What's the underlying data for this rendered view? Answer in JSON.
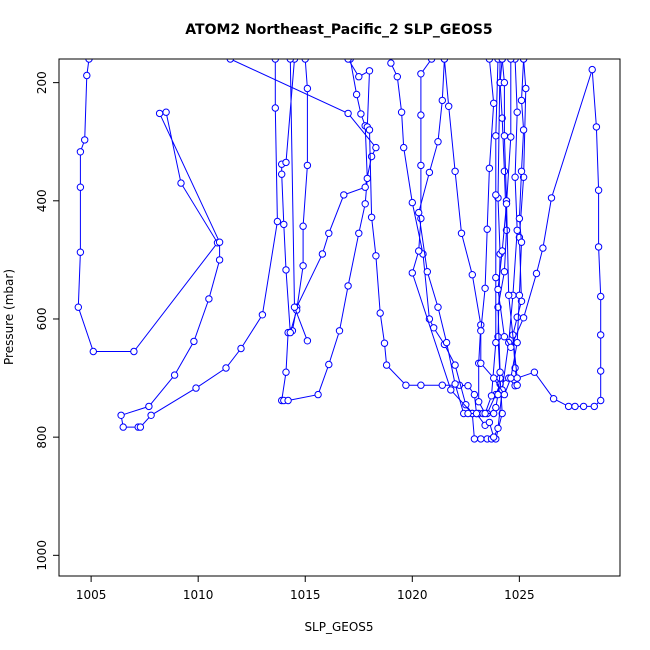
{
  "chart_data": {
    "type": "line",
    "title": "ATOM2 Northeast_Pacific_2 SLP_GEOS5",
    "xlabel": "SLP_GEOS5",
    "ylabel": "Pressure (mbar)",
    "xlim": [
      1003.5,
      1029.7
    ],
    "ylim": [
      1035,
      160
    ],
    "y_inverted": true,
    "x_ticks": [
      1005,
      1010,
      1015,
      1020,
      1025
    ],
    "y_ticks": [
      200,
      400,
      600,
      800,
      1000
    ],
    "grid": false,
    "legend": "none",
    "line_color": "#0000ff",
    "marker": "open-circle",
    "series": [
      {
        "points": [
          [
            1004.9,
            160
          ],
          [
            1004.8,
            188
          ],
          [
            1004.7,
            297
          ],
          [
            1004.5,
            317
          ],
          [
            1004.5,
            377
          ],
          [
            1004.5,
            487
          ],
          [
            1004.4,
            580
          ],
          [
            1005.1,
            655
          ],
          [
            1007.0,
            655
          ],
          [
            1010.9,
            471
          ],
          [
            1009.2,
            370
          ],
          [
            1008.5,
            250
          ],
          [
            1008.2,
            252
          ],
          [
            1011.0,
            470
          ],
          [
            1011.0,
            500
          ],
          [
            1010.5,
            566
          ],
          [
            1009.8,
            638
          ],
          [
            1008.9,
            695
          ],
          [
            1007.7,
            748
          ],
          [
            1006.4,
            763
          ],
          [
            1006.5,
            783
          ],
          [
            1007.2,
            783
          ],
          [
            1007.3,
            783
          ],
          [
            1007.8,
            763
          ],
          [
            1009.9,
            717
          ],
          [
            1011.3,
            683
          ],
          [
            1012.0,
            650
          ],
          [
            1013.0,
            593
          ],
          [
            1013.7,
            435
          ],
          [
            1013.6,
            243
          ],
          [
            1013.6,
            160
          ]
        ]
      },
      {
        "points": [
          [
            1011.5,
            160
          ],
          [
            1017.0,
            252
          ],
          [
            1018.3,
            310
          ],
          [
            1018.1,
            325
          ],
          [
            1017.8,
            377
          ],
          [
            1016.8,
            390
          ],
          [
            1016.1,
            455
          ],
          [
            1015.8,
            490
          ],
          [
            1014.6,
            580
          ],
          [
            1014.4,
            620
          ],
          [
            1014.2,
            623
          ],
          [
            1014.1,
            690
          ],
          [
            1013.9,
            738
          ],
          [
            1014.0,
            738
          ],
          [
            1014.2,
            738
          ],
          [
            1015.6,
            728
          ],
          [
            1016.1,
            677
          ],
          [
            1016.6,
            620
          ],
          [
            1017.0,
            544
          ],
          [
            1017.5,
            455
          ],
          [
            1017.8,
            405
          ],
          [
            1017.9,
            362
          ],
          [
            1017.8,
            273
          ],
          [
            1017.6,
            253
          ],
          [
            1017.4,
            220
          ],
          [
            1017.1,
            160
          ]
        ]
      },
      {
        "points": [
          [
            1015.0,
            160
          ],
          [
            1015.1,
            210
          ],
          [
            1015.1,
            340
          ],
          [
            1014.9,
            443
          ],
          [
            1014.9,
            510
          ],
          [
            1014.6,
            585
          ],
          [
            1014.3,
            623
          ],
          [
            1014.1,
            517
          ],
          [
            1014.0,
            440
          ],
          [
            1013.9,
            355
          ],
          [
            1013.9,
            338
          ],
          [
            1014.1,
            335
          ],
          [
            1014.5,
            160
          ]
        ]
      },
      {
        "points": [
          [
            1014.3,
            160
          ],
          [
            1014.5,
            580
          ],
          [
            1015.1,
            637
          ]
        ]
      },
      {
        "points": [
          [
            1017.0,
            160
          ],
          [
            1017.5,
            190
          ],
          [
            1018.0,
            180
          ],
          [
            1017.9,
            275
          ],
          [
            1018.0,
            280
          ],
          [
            1018.1,
            428
          ],
          [
            1018.3,
            493
          ],
          [
            1018.5,
            590
          ],
          [
            1018.7,
            641
          ],
          [
            1018.8,
            678
          ],
          [
            1019.7,
            712
          ],
          [
            1020.4,
            712
          ],
          [
            1021.4,
            712
          ],
          [
            1022.2,
            712
          ],
          [
            1022.6,
            713
          ],
          [
            1022.9,
            728
          ],
          [
            1023.0,
            760
          ],
          [
            1023.5,
            760
          ],
          [
            1023.9,
            728
          ],
          [
            1024.1,
            710
          ],
          [
            1024.5,
            700
          ],
          [
            1024.8,
            713
          ],
          [
            1024.9,
            712
          ],
          [
            1024.8,
            683
          ],
          [
            1024.7,
            627
          ],
          [
            1024.9,
            597
          ],
          [
            1025.1,
            570
          ],
          [
            1025.0,
            462
          ],
          [
            1025.2,
            360
          ],
          [
            1025.3,
            210
          ],
          [
            1025.2,
            160
          ]
        ]
      },
      {
        "points": [
          [
            1019.0,
            167
          ],
          [
            1019.3,
            190
          ],
          [
            1019.5,
            250
          ],
          [
            1019.6,
            310
          ],
          [
            1020.0,
            403
          ],
          [
            1020.5,
            490
          ],
          [
            1020.8,
            600
          ],
          [
            1021.0,
            615
          ],
          [
            1021.5,
            643
          ],
          [
            1022.0,
            678
          ],
          [
            1022.5,
            745
          ],
          [
            1022.8,
            760
          ],
          [
            1022.9,
            803
          ],
          [
            1023.2,
            803
          ],
          [
            1023.5,
            803
          ],
          [
            1023.7,
            803
          ],
          [
            1023.9,
            803
          ],
          [
            1024.2,
            760
          ],
          [
            1024.1,
            700
          ],
          [
            1024.0,
            630
          ],
          [
            1024.1,
            490
          ],
          [
            1024.0,
            395
          ],
          [
            1024.1,
            160
          ]
        ]
      },
      {
        "points": [
          [
            1020.9,
            160
          ],
          [
            1020.4,
            185
          ],
          [
            1020.4,
            255
          ],
          [
            1020.4,
            340
          ],
          [
            1020.4,
            430
          ],
          [
            1020.3,
            485
          ],
          [
            1020.0,
            522
          ],
          [
            1021.8,
            720
          ],
          [
            1022.8,
            760
          ],
          [
            1023.1,
            760
          ],
          [
            1023.3,
            760
          ],
          [
            1023.8,
            760
          ],
          [
            1023.9,
            750
          ],
          [
            1024.0,
            728
          ],
          [
            1024.1,
            690
          ],
          [
            1024.0,
            580
          ],
          [
            1024.3,
            520
          ],
          [
            1024.4,
            450
          ],
          [
            1024.3,
            350
          ],
          [
            1024.2,
            260
          ],
          [
            1024.1,
            200
          ],
          [
            1024.2,
            160
          ]
        ]
      },
      {
        "points": [
          [
            1021.5,
            160
          ],
          [
            1021.4,
            230
          ],
          [
            1021.2,
            300
          ],
          [
            1020.8,
            352
          ],
          [
            1020.3,
            420
          ],
          [
            1020.7,
            520
          ],
          [
            1021.2,
            580
          ],
          [
            1021.6,
            640
          ],
          [
            1022.0,
            710
          ],
          [
            1022.4,
            760
          ],
          [
            1022.6,
            760
          ],
          [
            1023.0,
            760
          ],
          [
            1023.4,
            780
          ],
          [
            1023.6,
            775
          ],
          [
            1023.8,
            800
          ],
          [
            1024.0,
            785
          ],
          [
            1024.2,
            720
          ],
          [
            1024.5,
            640
          ],
          [
            1024.7,
            560
          ],
          [
            1024.9,
            450
          ],
          [
            1024.8,
            360
          ],
          [
            1024.9,
            250
          ],
          [
            1024.8,
            160
          ]
        ]
      },
      {
        "points": [
          [
            1021.5,
            160
          ],
          [
            1021.7,
            240
          ],
          [
            1022.0,
            350
          ],
          [
            1022.3,
            455
          ],
          [
            1022.8,
            525
          ],
          [
            1023.2,
            610
          ],
          [
            1023.1,
            675
          ],
          [
            1023.1,
            740
          ],
          [
            1023.4,
            760
          ],
          [
            1023.7,
            730
          ],
          [
            1023.9,
            640
          ],
          [
            1023.9,
            530
          ],
          [
            1023.9,
            390
          ],
          [
            1023.9,
            290
          ],
          [
            1024.0,
            160
          ]
        ]
      },
      {
        "points": [
          [
            1023.6,
            160
          ],
          [
            1023.8,
            235
          ],
          [
            1023.6,
            345
          ],
          [
            1023.5,
            448
          ],
          [
            1023.4,
            548
          ],
          [
            1023.2,
            620
          ],
          [
            1023.2,
            675
          ],
          [
            1023.8,
            700
          ],
          [
            1024.3,
            728
          ],
          [
            1024.6,
            700
          ],
          [
            1024.9,
            640
          ],
          [
            1025.0,
            560
          ],
          [
            1025.1,
            470
          ],
          [
            1025.0,
            430
          ],
          [
            1025.1,
            350
          ],
          [
            1025.2,
            280
          ],
          [
            1025.1,
            230
          ],
          [
            1025.2,
            160
          ]
        ]
      },
      {
        "points": [
          [
            1024.2,
            160
          ],
          [
            1024.3,
            200
          ],
          [
            1024.3,
            290
          ],
          [
            1024.4,
            400
          ],
          [
            1024.5,
            560
          ],
          [
            1024.9,
            700
          ],
          [
            1025.7,
            690
          ],
          [
            1026.6,
            735
          ],
          [
            1027.3,
            748
          ],
          [
            1027.6,
            748
          ],
          [
            1028.0,
            748
          ],
          [
            1028.5,
            748
          ],
          [
            1028.8,
            738
          ],
          [
            1028.8,
            688
          ],
          [
            1028.8,
            627
          ],
          [
            1028.8,
            562
          ],
          [
            1028.7,
            478
          ],
          [
            1028.7,
            382
          ],
          [
            1028.6,
            275
          ],
          [
            1028.4,
            178
          ],
          [
            1026.5,
            395
          ],
          [
            1026.1,
            480
          ],
          [
            1025.8,
            523
          ],
          [
            1025.2,
            598
          ],
          [
            1024.6,
            648
          ],
          [
            1024.3,
            630
          ],
          [
            1024.0,
            550
          ],
          [
            1024.2,
            485
          ],
          [
            1024.4,
            405
          ],
          [
            1024.6,
            292
          ],
          [
            1024.6,
            160
          ]
        ]
      }
    ]
  }
}
